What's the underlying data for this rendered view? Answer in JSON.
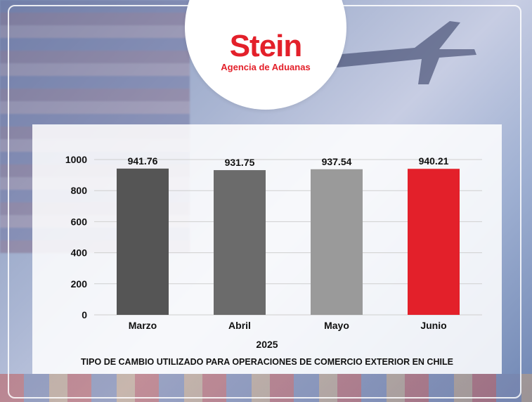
{
  "brand": {
    "name": "Stein",
    "tagline": "Agencia de Aduanas",
    "color": "#e3202a"
  },
  "chart_data": {
    "type": "bar",
    "categories": [
      "Marzo",
      "Abril",
      "Mayo",
      "Junio"
    ],
    "values": [
      941.76,
      931.75,
      937.54,
      940.21
    ],
    "value_labels": [
      "941.76",
      "931.75",
      "937.54",
      "940.21"
    ],
    "bar_colors": [
      "#555555",
      "#6b6b6b",
      "#9a9a9a",
      "#e3202a"
    ],
    "xlabel": "2025",
    "caption": "TIPO DE CAMBIO UTILIZADO PARA OPERACIONES DE COMERCIO EXTERIOR EN CHILE",
    "ylim": [
      0,
      1000
    ],
    "yticks": [
      "0",
      "200",
      "400",
      "600",
      "800",
      "1000"
    ],
    "grid": true
  }
}
